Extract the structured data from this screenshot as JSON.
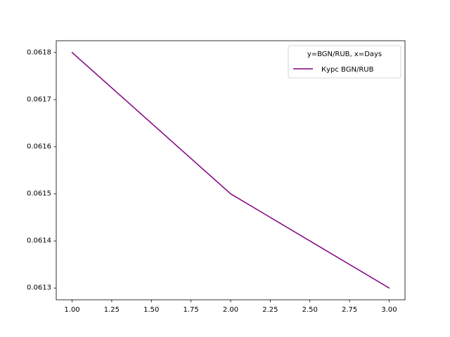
{
  "chart_data": {
    "type": "line",
    "title": "",
    "xlabel": "",
    "ylabel": "",
    "x": [
      1.0,
      2.0,
      3.0
    ],
    "series": [
      {
        "name": "Курс BGN/RUB",
        "values": [
          0.0618,
          0.0615,
          0.0613
        ],
        "color": "#800080"
      }
    ],
    "xlim": [
      0.9,
      3.1
    ],
    "ylim": [
      0.061275,
      0.061825
    ],
    "x_ticks": [
      "1.00",
      "1.25",
      "1.50",
      "1.75",
      "2.00",
      "2.25",
      "2.50",
      "2.75",
      "3.00"
    ],
    "y_ticks": [
      "0.0613",
      "0.0614",
      "0.0615",
      "0.0616",
      "0.0617",
      "0.0618"
    ],
    "grid": false,
    "legend": {
      "title": "y=BGN/RUB, x=Days",
      "placement": "top-right"
    }
  }
}
